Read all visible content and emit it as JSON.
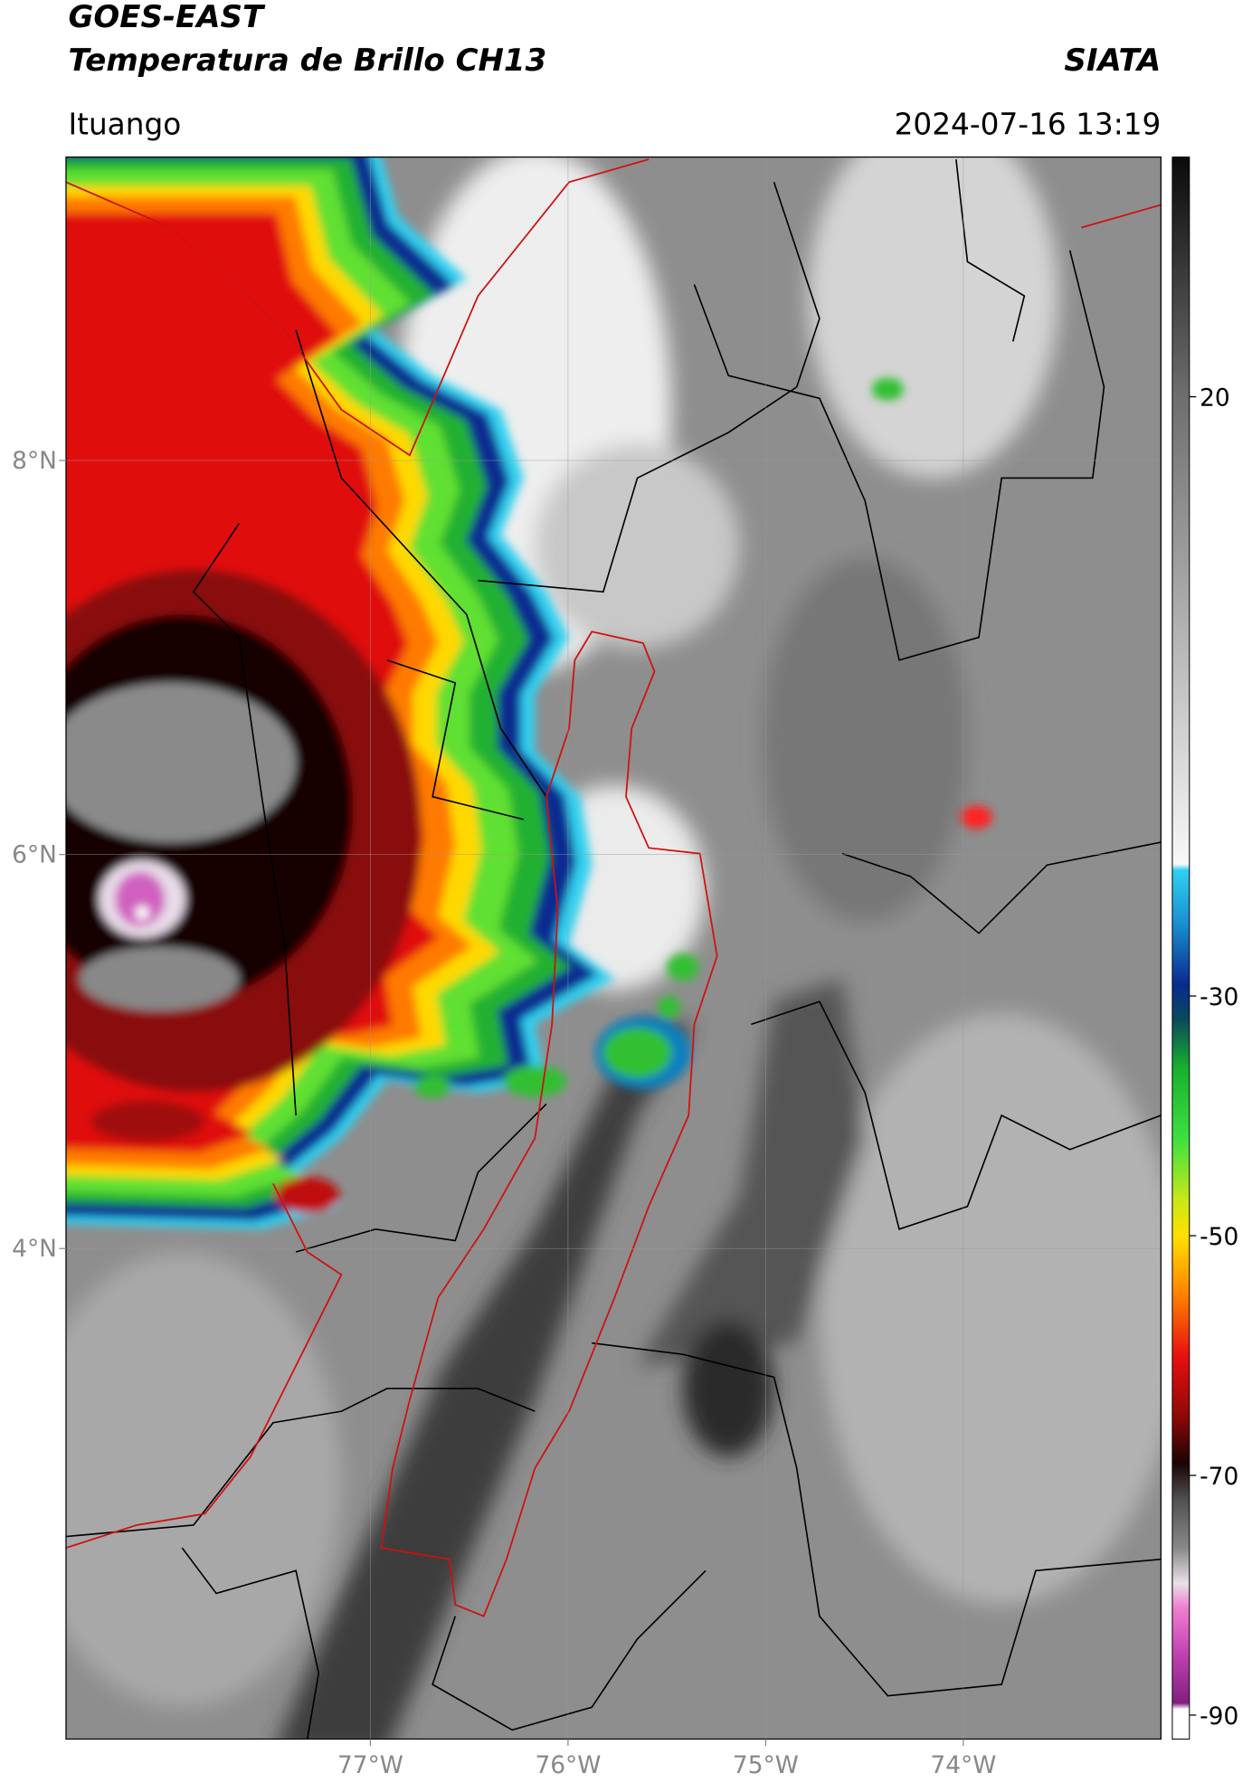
{
  "header": {
    "title": "GOES-EAST",
    "subtitle": "Temperatura de Brillo CH13",
    "agency": "SIATA",
    "location": "Ituango",
    "timestamp": "2024-07-16 13:19"
  },
  "map": {
    "lonlim": [
      -78.54,
      -73.0
    ],
    "latlim": [
      1.51,
      9.54
    ],
    "lon_ticks": [
      {
        "value": -77,
        "label": "77°W"
      },
      {
        "value": -76,
        "label": "76°W"
      },
      {
        "value": -75,
        "label": "75°W"
      },
      {
        "value": -74,
        "label": "74°W"
      }
    ],
    "lat_ticks": [
      {
        "value": 8,
        "label": "8°N"
      },
      {
        "value": 6,
        "label": "6°N"
      },
      {
        "value": 4,
        "label": "4°N"
      }
    ],
    "grid": true
  },
  "colorbar": {
    "lim": [
      -92,
      40
    ],
    "ticks": [
      20,
      -30,
      -50,
      -70,
      -90
    ],
    "colormap": [
      [
        40,
        "#0a0a0a"
      ],
      [
        20,
        "#6e6e6e"
      ],
      [
        0,
        "#b4b4b4"
      ],
      [
        -19,
        "#f8f8f8"
      ],
      [
        -19.5,
        "#30d0f0"
      ],
      [
        -24,
        "#1a8fd0"
      ],
      [
        -29,
        "#0a2a90"
      ],
      [
        -32,
        "#0a4a5a"
      ],
      [
        -36,
        "#18b030"
      ],
      [
        -42,
        "#40e040"
      ],
      [
        -47,
        "#c8e818"
      ],
      [
        -50,
        "#ffe000"
      ],
      [
        -55,
        "#ff8000"
      ],
      [
        -60,
        "#e81010"
      ],
      [
        -65,
        "#900808"
      ],
      [
        -69,
        "#1a0404"
      ],
      [
        -72,
        "#505050"
      ],
      [
        -76,
        "#888888"
      ],
      [
        -79,
        "#e8e0e8"
      ],
      [
        -81,
        "#f080d0"
      ],
      [
        -85,
        "#c040b0"
      ],
      [
        -89,
        "#802080"
      ],
      [
        -89.5,
        "#ffffff"
      ],
      [
        -92,
        "#ffffff"
      ]
    ]
  }
}
